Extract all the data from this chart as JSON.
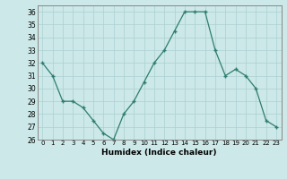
{
  "x": [
    0,
    1,
    2,
    3,
    4,
    5,
    6,
    7,
    8,
    9,
    10,
    11,
    12,
    13,
    14,
    15,
    16,
    17,
    18,
    19,
    20,
    21,
    22,
    23
  ],
  "y": [
    32,
    31,
    29,
    29,
    28.5,
    27.5,
    26.5,
    26,
    28,
    29,
    30.5,
    32,
    33,
    34.5,
    36,
    36,
    36,
    33,
    31,
    31.5,
    31,
    30,
    27.5,
    27
  ],
  "line_color": "#2e7d6e",
  "marker": "+",
  "marker_size": 3.5,
  "marker_linewidth": 1.0,
  "line_width": 0.9,
  "bg_color": "#cce8e8",
  "grid_color": "#aad0d0",
  "xlabel": "Humidex (Indice chaleur)",
  "ylim": [
    26,
    36.5
  ],
  "yticks": [
    26,
    27,
    28,
    29,
    30,
    31,
    32,
    33,
    34,
    35,
    36
  ],
  "xlim": [
    -0.5,
    23.5
  ],
  "xtick_labels": [
    "0",
    "1",
    "2",
    "3",
    "4",
    "5",
    "6",
    "7",
    "8",
    "9",
    "10",
    "11",
    "12",
    "13",
    "14",
    "15",
    "16",
    "17",
    "18",
    "19",
    "20",
    "21",
    "22",
    "23"
  ]
}
